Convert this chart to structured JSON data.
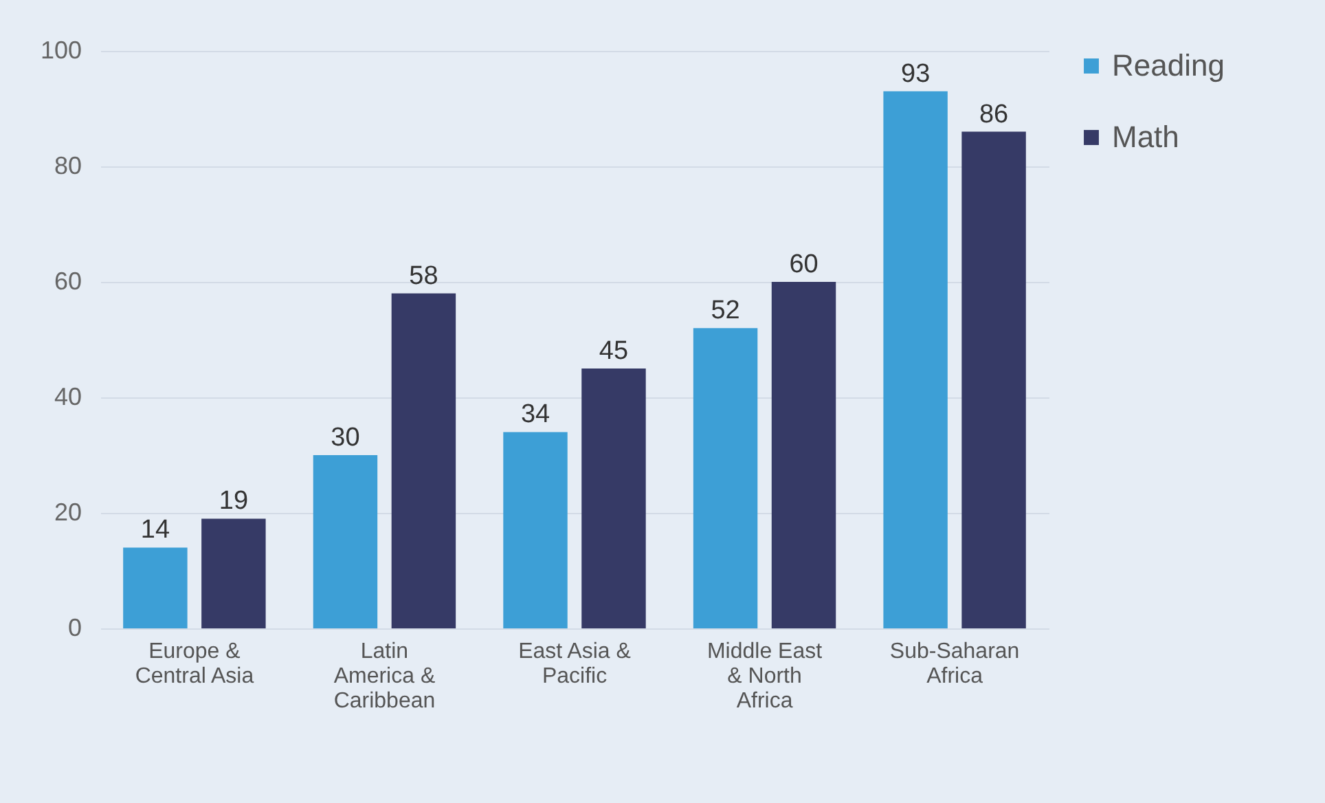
{
  "chart_data": {
    "type": "bar",
    "categories": [
      "Europe & Central Asia",
      "Latin America & Caribbean",
      "East Asia & Pacific",
      "Middle East & North Africa",
      "Sub-Saharan Africa"
    ],
    "series": [
      {
        "name": "Reading",
        "color": "#3d9fd6",
        "values": [
          14,
          30,
          34,
          52,
          93
        ]
      },
      {
        "name": "Math",
        "color": "#363a66",
        "values": [
          19,
          58,
          45,
          60,
          86
        ]
      }
    ],
    "ylim": [
      0,
      100
    ],
    "yticks": [
      0,
      20,
      40,
      60,
      80,
      100
    ],
    "grid": "y",
    "legend": "right",
    "data_labels": true
  }
}
